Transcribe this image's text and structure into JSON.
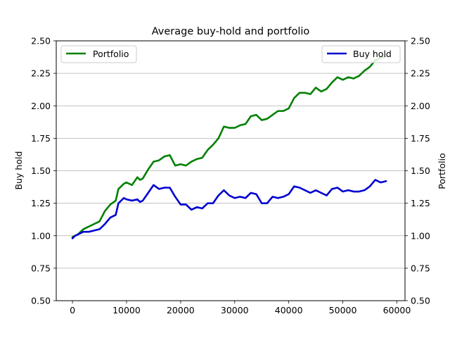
{
  "chart_data": {
    "type": "line",
    "title": "Average buy-hold and portfolio",
    "xlabel": "",
    "ylabel_left": "Buy hold",
    "ylabel_right": "Portfolio",
    "xlim": [
      -3000,
      61500
    ],
    "ylim_left": [
      0.5,
      2.5
    ],
    "ylim_right": [
      0.5,
      2.5
    ],
    "x_ticks": [
      0,
      10000,
      20000,
      30000,
      40000,
      50000,
      60000
    ],
    "y_ticks": [
      0.5,
      0.75,
      1.0,
      1.25,
      1.5,
      1.75,
      2.0,
      2.25,
      2.5
    ],
    "y_tick_labels": [
      "0.50",
      "0.75",
      "1.00",
      "1.25",
      "1.50",
      "1.75",
      "2.00",
      "2.25",
      "2.50"
    ],
    "grid": "horizontal",
    "series": [
      {
        "name": "Portfolio",
        "axis": "right",
        "color": "#008000",
        "legend": "top-left",
        "x": [
          0,
          500,
          1000,
          1500,
          2000,
          3000,
          4000,
          5000,
          6000,
          7000,
          8000,
          8500,
          9000,
          9500,
          10000,
          11000,
          12000,
          12500,
          13000,
          14000,
          15000,
          16000,
          17000,
          18000,
          19000,
          20000,
          21000,
          22000,
          23000,
          24000,
          25000,
          26000,
          27000,
          28000,
          29000,
          30000,
          31000,
          32000,
          33000,
          34000,
          35000,
          36000,
          37000,
          38000,
          39000,
          40000,
          41000,
          42000,
          43000,
          44000,
          45000,
          46000,
          47000,
          48000,
          49000,
          50000,
          51000,
          52000,
          53000,
          54000,
          55000,
          56000,
          57000,
          58000
        ],
        "y": [
          0.99,
          1.0,
          1.01,
          1.03,
          1.05,
          1.07,
          1.09,
          1.11,
          1.19,
          1.24,
          1.27,
          1.36,
          1.38,
          1.4,
          1.41,
          1.39,
          1.45,
          1.43,
          1.44,
          1.51,
          1.57,
          1.58,
          1.61,
          1.62,
          1.54,
          1.55,
          1.54,
          1.57,
          1.59,
          1.6,
          1.66,
          1.7,
          1.75,
          1.84,
          1.83,
          1.83,
          1.85,
          1.86,
          1.92,
          1.93,
          1.89,
          1.9,
          1.93,
          1.96,
          1.96,
          1.98,
          2.06,
          2.1,
          2.1,
          2.09,
          2.14,
          2.11,
          2.13,
          2.18,
          2.22,
          2.2,
          2.22,
          2.21,
          2.23,
          2.27,
          2.3,
          2.35,
          2.37,
          2.38
        ]
      },
      {
        "name": "Buy hold",
        "axis": "left",
        "color": "#0000d0",
        "legend": "top-right",
        "x": [
          0,
          500,
          1000,
          1500,
          2000,
          3000,
          4000,
          5000,
          6000,
          7000,
          8000,
          8500,
          9000,
          9500,
          10000,
          11000,
          12000,
          12500,
          13000,
          14000,
          15000,
          16000,
          17000,
          18000,
          19000,
          20000,
          21000,
          22000,
          23000,
          24000,
          25000,
          26000,
          27000,
          28000,
          29000,
          30000,
          31000,
          32000,
          33000,
          34000,
          35000,
          36000,
          37000,
          38000,
          39000,
          40000,
          41000,
          42000,
          43000,
          44000,
          45000,
          46000,
          47000,
          48000,
          49000,
          50000,
          51000,
          52000,
          53000,
          54000,
          55000,
          56000,
          57000,
          58000
        ],
        "y": [
          0.98,
          1.0,
          1.01,
          1.02,
          1.03,
          1.03,
          1.04,
          1.05,
          1.09,
          1.14,
          1.16,
          1.25,
          1.27,
          1.29,
          1.28,
          1.27,
          1.28,
          1.26,
          1.27,
          1.33,
          1.39,
          1.36,
          1.37,
          1.37,
          1.3,
          1.24,
          1.24,
          1.2,
          1.22,
          1.21,
          1.25,
          1.25,
          1.31,
          1.35,
          1.31,
          1.29,
          1.3,
          1.29,
          1.33,
          1.32,
          1.25,
          1.25,
          1.3,
          1.29,
          1.3,
          1.32,
          1.38,
          1.37,
          1.35,
          1.33,
          1.35,
          1.33,
          1.31,
          1.36,
          1.37,
          1.34,
          1.35,
          1.34,
          1.34,
          1.35,
          1.38,
          1.43,
          1.41,
          1.42
        ]
      }
    ]
  }
}
